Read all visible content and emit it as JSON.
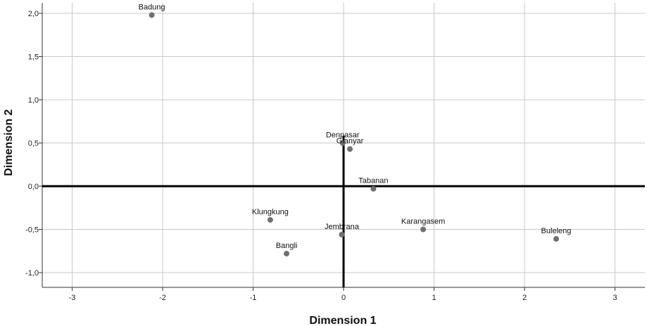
{
  "chart_data": {
    "type": "scatter",
    "xlabel": "Dimension 1",
    "ylabel": "Dimension 2",
    "xlim": [
      -3.3,
      3.3
    ],
    "ylim": [
      -1.15,
      2.1
    ],
    "x_ticks": [
      -3,
      -2,
      -1,
      0,
      1,
      2,
      3
    ],
    "x_tick_labels": [
      "-3",
      "-2",
      "-1",
      "0",
      "1",
      "2",
      "3"
    ],
    "y_ticks": [
      2.0,
      1.5,
      1.0,
      0.5,
      0.0,
      -0.5,
      -1.0
    ],
    "y_tick_labels": [
      "2,0",
      "1,5",
      "1,0",
      "0,5",
      "0,0",
      "-0,5",
      "-1,0"
    ],
    "grid": true,
    "marker_color": "#707070",
    "points": [
      {
        "label": "Badung",
        "x": -2.12,
        "y": 1.98
      },
      {
        "label": "Denpasar",
        "x": -0.01,
        "y": 0.5
      },
      {
        "label": "Gianyar",
        "x": 0.07,
        "y": 0.43
      },
      {
        "label": "Tabanan",
        "x": 0.33,
        "y": -0.03
      },
      {
        "label": "Klungkung",
        "x": -0.81,
        "y": -0.39
      },
      {
        "label": "Bangli",
        "x": -0.63,
        "y": -0.78
      },
      {
        "label": "Jembrana",
        "x": -0.02,
        "y": -0.56
      },
      {
        "label": "Karangasem",
        "x": 0.88,
        "y": -0.5
      },
      {
        "label": "Buleleng",
        "x": 2.35,
        "y": -0.61
      }
    ]
  }
}
